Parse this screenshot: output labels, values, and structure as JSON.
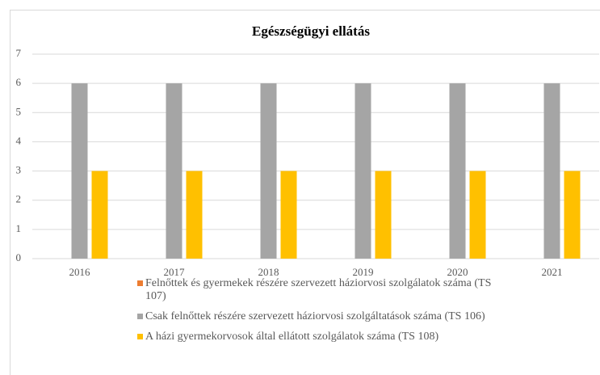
{
  "chart_data": {
    "type": "bar",
    "title": "Egészségügyi ellátás",
    "categories": [
      "2016",
      "2017",
      "2018",
      "2019",
      "2020",
      "2021"
    ],
    "series": [
      {
        "name": "Felnőttek és gyermekek részére szervezett háziorvosi szolgálatok száma (TS 107)",
        "color": "#ed7d31",
        "values": [
          0,
          0,
          0,
          0,
          0,
          0
        ]
      },
      {
        "name": "Csak felnőttek részére szervezett háziorvosi szolgáltatások száma (TS 106)",
        "color": "#a5a5a5",
        "values": [
          6,
          6,
          6,
          6,
          6,
          6
        ]
      },
      {
        "name": "A házi gyermekorvosok által ellátott szolgálatok száma (TS 108)",
        "color": "#ffc000",
        "values": [
          3,
          3,
          3,
          3,
          3,
          3
        ]
      }
    ],
    "ylim": [
      0,
      7
    ],
    "yticks": [
      0,
      1,
      2,
      3,
      4,
      5,
      6,
      7
    ],
    "grid": true,
    "legend": "bottom"
  }
}
